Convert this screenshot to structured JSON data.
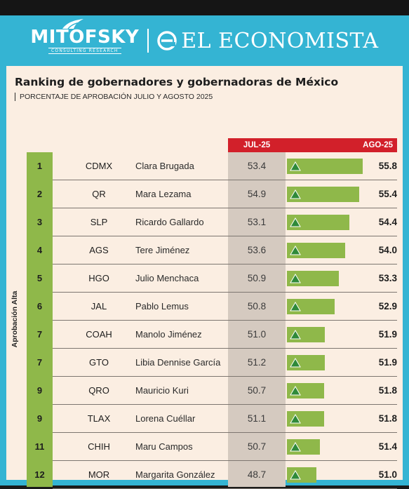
{
  "header": {
    "logo_left": "MITOFSKY",
    "logo_left_tagline": "CONSULTING RESEARCH",
    "logo_right": "EL ECONOMISTA"
  },
  "chart_data": {
    "type": "table",
    "title": "Ranking de gobernadores y gobernadoras de México",
    "subtitle": "PORCENTAJE DE APROBACIÓN JULIO Y AGOSTO 2025",
    "columns": [
      "JUL-25",
      "AGO-25"
    ],
    "group_label": "Aprobación Alta",
    "bar_scale": {
      "min": 48,
      "max": 56
    },
    "rows": [
      {
        "rank": "1",
        "state": "CDMX",
        "name": "Clara Brugada",
        "jul": "53.4",
        "ago": "55.8"
      },
      {
        "rank": "2",
        "state": "QR",
        "name": "Mara Lezama",
        "jul": "54.9",
        "ago": "55.4"
      },
      {
        "rank": "3",
        "state": "SLP",
        "name": "Ricardo Gallardo",
        "jul": "53.1",
        "ago": "54.4"
      },
      {
        "rank": "4",
        "state": "AGS",
        "name": "Tere Jiménez",
        "jul": "53.6",
        "ago": "54.0"
      },
      {
        "rank": "5",
        "state": "HGO",
        "name": "Julio Menchaca",
        "jul": "50.9",
        "ago": "53.3"
      },
      {
        "rank": "6",
        "state": "JAL",
        "name": "Pablo Lemus",
        "jul": "50.8",
        "ago": "52.9"
      },
      {
        "rank": "7",
        "state": "COAH",
        "name": "Manolo Jiménez",
        "jul": "51.0",
        "ago": "51.9"
      },
      {
        "rank": "7",
        "state": "GTO",
        "name": "Libia Dennise García",
        "jul": "51.2",
        "ago": "51.9"
      },
      {
        "rank": "9",
        "state": "QRO",
        "name": "Mauricio Kuri",
        "jul": "50.7",
        "ago": "51.8"
      },
      {
        "rank": "9",
        "state": "TLAX",
        "name": "Lorena Cuéllar",
        "jul": "51.1",
        "ago": "51.8"
      },
      {
        "rank": "11",
        "state": "CHIH",
        "name": "Maru Campos",
        "jul": "50.7",
        "ago": "51.4"
      },
      {
        "rank": "12",
        "state": "MOR",
        "name": "Margarita González",
        "jul": "48.7",
        "ago": "51.0"
      }
    ]
  },
  "colors": {
    "frame": "#34b4d3",
    "panel": "#fbeee2",
    "accent_red": "#d2202a",
    "green": "#8fb84a",
    "jul_band": "#d5cac0",
    "triangle": "#2f8a3a"
  },
  "icons": {
    "trend": "up-triangle-icon"
  }
}
